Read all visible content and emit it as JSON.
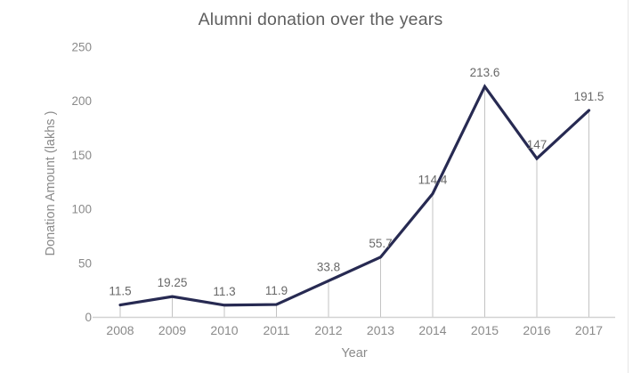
{
  "chart_data": {
    "type": "line",
    "title": "Alumni donation over the years",
    "xlabel": "Year",
    "ylabel": "Donation Amount (lakhs )",
    "categories": [
      "2008",
      "2009",
      "2010",
      "2011",
      "2012",
      "2013",
      "2014",
      "2015",
      "2016",
      "2017"
    ],
    "values": [
      11.5,
      19.25,
      11.3,
      11.9,
      33.8,
      55.7,
      114.4,
      213.6,
      147,
      191.5
    ],
    "data_labels": [
      "11.5",
      "19.25",
      "11.3",
      "11.9",
      "33.8",
      "55.7",
      "114.4",
      "213.6",
      "147",
      "191.5"
    ],
    "y_ticks": [
      0,
      50,
      100,
      150,
      200,
      250
    ],
    "ylim": [
      0,
      250
    ],
    "grid": "off",
    "legend": "none",
    "style_notes": "thin gray drop lines from each data point to the x-axis; no markers",
    "colors": {
      "line": "#272a52",
      "drop_line": "#c3c3c3",
      "axis_line": "#d2d2d2",
      "tick_text": "#8a8a8a",
      "data_label_text": "#686868",
      "title_text": "#5f5f5f",
      "background": "#ffffff",
      "page_edge": "#e6e6e6"
    }
  }
}
